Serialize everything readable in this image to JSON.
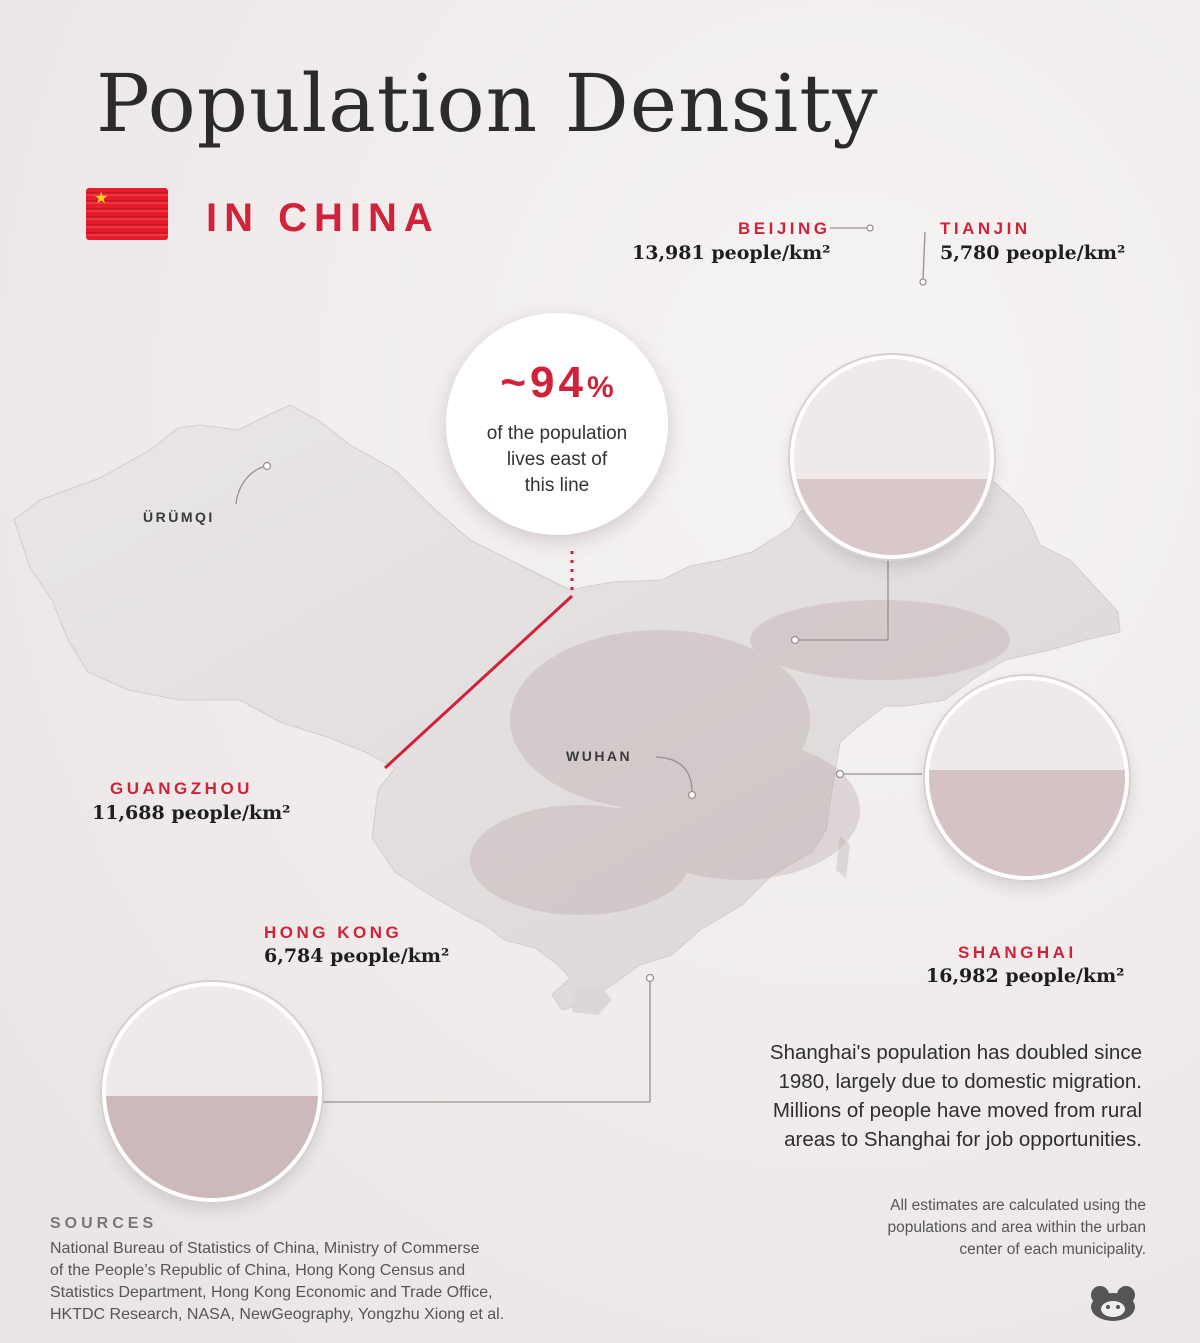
{
  "title": "Population Density",
  "subtitle": "IN CHINA",
  "callout": {
    "value": "~94",
    "unit": "%",
    "text_lines": [
      "of the population",
      "lives east of",
      "this line"
    ]
  },
  "cities": {
    "beijing": {
      "name": "BEIJING",
      "density": "13,981 people/km²"
    },
    "tianjin": {
      "name": "TIANJIN",
      "density": "5,780 people/km²"
    },
    "guangzhou": {
      "name": "GUANGZHOU",
      "density": "11,688 people/km²"
    },
    "hongkong": {
      "name": "HONG KONG",
      "density": "6,784 people/km²"
    },
    "shanghai": {
      "name": "SHANGHAI",
      "density": "16,982 people/km²"
    },
    "urumqi": {
      "name": "ÜRÜMQI"
    },
    "wuhan": {
      "name": "WUHAN"
    }
  },
  "note_lines": [
    "Shanghai's population has doubled since",
    "1980, largely due to domestic migration.",
    "Millions of people have moved from rural",
    "areas to Shanghai for job opportunities."
  ],
  "estimates_lines": [
    "All estimates are calculated  using the",
    "populations and area within the urban",
    "center of each municipality."
  ],
  "sources": {
    "title": "SOURCES",
    "lines": [
      "National Bureau of Statistics of China, Ministry of Commerse",
      "of the People’s Republic of China, Hong Kong Census and",
      "Statistics Department, Hong Kong Economic and Trade Office,",
      "HKTDC Research,  NASA, NewGeography, Yongzhu Xiong et al."
    ]
  },
  "colors": {
    "accent": "#d0223a",
    "map_fill": "#e3dfdf",
    "spike": "#e0455a",
    "connector": "#9a8f90"
  },
  "icons": {
    "flag": "china-flag-icon",
    "logo": "visual-capitalist-logo-icon"
  }
}
